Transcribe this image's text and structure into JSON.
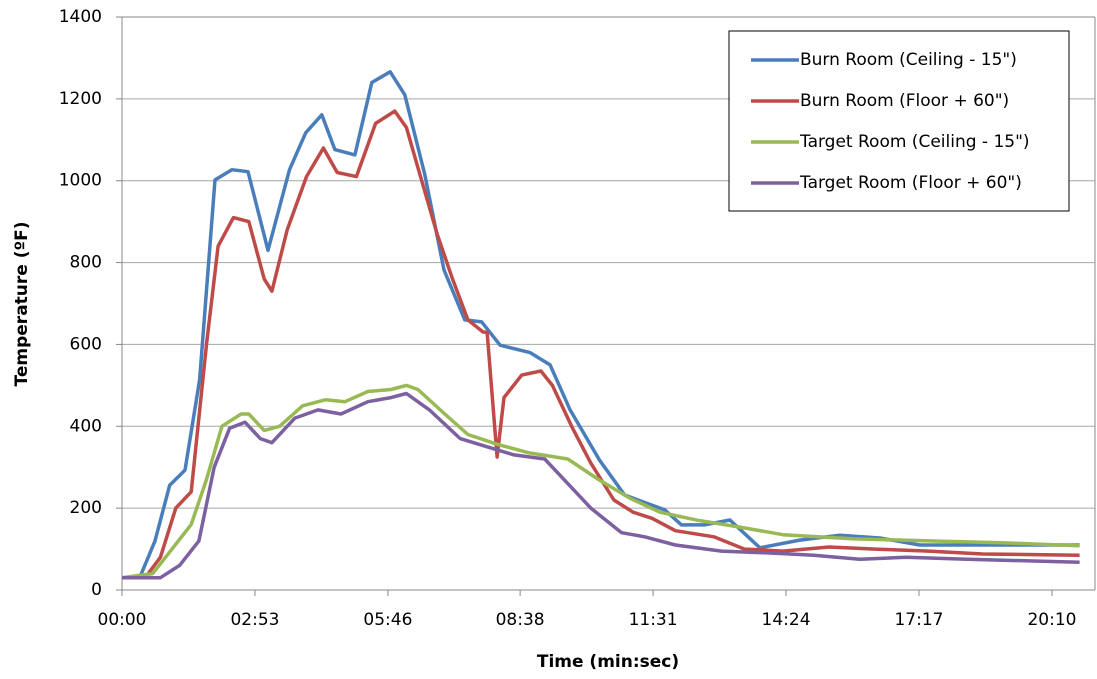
{
  "chart_data": {
    "type": "line",
    "xlabel": "Time (min:sec)",
    "ylabel": "Temperature (ºF)",
    "xlim": [
      0,
      1266
    ],
    "ylim": [
      0,
      1400
    ],
    "xticks": [
      {
        "value": 0,
        "label": "00:00"
      },
      {
        "value": 173,
        "label": "02:53"
      },
      {
        "value": 346,
        "label": "05:46"
      },
      {
        "value": 518,
        "label": "08:38"
      },
      {
        "value": 691,
        "label": "11:31"
      },
      {
        "value": 864,
        "label": "14:24"
      },
      {
        "value": 1037,
        "label": "17:17"
      },
      {
        "value": 1210,
        "label": "20:10"
      }
    ],
    "yticks": [
      0,
      200,
      400,
      600,
      800,
      1000,
      1200,
      1400
    ],
    "grid": true,
    "legend": "upper right",
    "series": [
      {
        "name": "Burn Room (Ceiling - 15\")",
        "color": "#4a7ebb",
        "x": [
          0,
          23,
          43,
          62,
          82,
          101,
          121,
          143,
          164,
          190,
          218,
          239,
          260,
          277,
          303,
          325,
          349,
          368,
          394,
          419,
          446,
          468,
          492,
          531,
          557,
          583,
          621,
          654,
          681,
          706,
          728,
          758,
          791,
          830,
          882,
          934,
          986,
          1038,
          1090,
          1142,
          1246
        ],
        "values": [
          30,
          30,
          120,
          256,
          293,
          513,
          1002,
          1027,
          1022,
          830,
          1027,
          1117,
          1161,
          1076,
          1063,
          1240,
          1266,
          1210,
          1015,
          782,
          660,
          655,
          598,
          580,
          550,
          440,
          318,
          232,
          213,
          196,
          159,
          159,
          171,
          103,
          122,
          134,
          127,
          110,
          110,
          110,
          110
        ]
      },
      {
        "name": "Burn Room (Floor + 60\")",
        "color": "#be4b48",
        "x": [
          0,
          30,
          50,
          70,
          90,
          110,
          125,
          145,
          165,
          185,
          195,
          215,
          240,
          262,
          280,
          305,
          330,
          355,
          370,
          390,
          410,
          430,
          450,
          470,
          475,
          488,
          497,
          520,
          545,
          560,
          585,
          610,
          640,
          665,
          690,
          720,
          770,
          810,
          860,
          920,
          980,
          1050,
          1120,
          1246
        ],
        "values": [
          30,
          30,
          80,
          200,
          240,
          600,
          840,
          910,
          900,
          760,
          730,
          880,
          1010,
          1080,
          1020,
          1010,
          1140,
          1170,
          1130,
          1000,
          870,
          760,
          660,
          630,
          630,
          325,
          470,
          525,
          535,
          500,
          400,
          310,
          220,
          190,
          175,
          145,
          130,
          100,
          95,
          105,
          100,
          95,
          88,
          85
        ]
      },
      {
        "name": "Target Room (Ceiling - 15\")",
        "color": "#98b954",
        "x": [
          0,
          40,
          65,
          90,
          110,
          130,
          155,
          165,
          185,
          205,
          235,
          265,
          290,
          320,
          350,
          370,
          385,
          420,
          450,
          490,
          530,
          580,
          620,
          660,
          700,
          750,
          800,
          860,
          950,
          1050,
          1150,
          1246
        ],
        "values": [
          30,
          40,
          100,
          160,
          270,
          400,
          430,
          430,
          390,
          400,
          450,
          465,
          460,
          485,
          490,
          500,
          490,
          430,
          380,
          355,
          335,
          320,
          270,
          225,
          190,
          170,
          155,
          135,
          125,
          120,
          115,
          108
        ]
      },
      {
        "name": "Target Room (Floor + 60\")",
        "color": "#7d60a0",
        "x": [
          0,
          50,
          75,
          100,
          120,
          140,
          160,
          180,
          195,
          225,
          255,
          285,
          320,
          350,
          370,
          400,
          440,
          475,
          510,
          550,
          580,
          610,
          650,
          680,
          720,
          780,
          850,
          900,
          960,
          1020,
          1100,
          1246
        ],
        "values": [
          30,
          30,
          60,
          120,
          300,
          395,
          410,
          370,
          360,
          420,
          440,
          430,
          460,
          470,
          480,
          440,
          370,
          350,
          330,
          320,
          260,
          200,
          140,
          130,
          110,
          95,
          90,
          85,
          75,
          80,
          75,
          68
        ]
      }
    ]
  }
}
